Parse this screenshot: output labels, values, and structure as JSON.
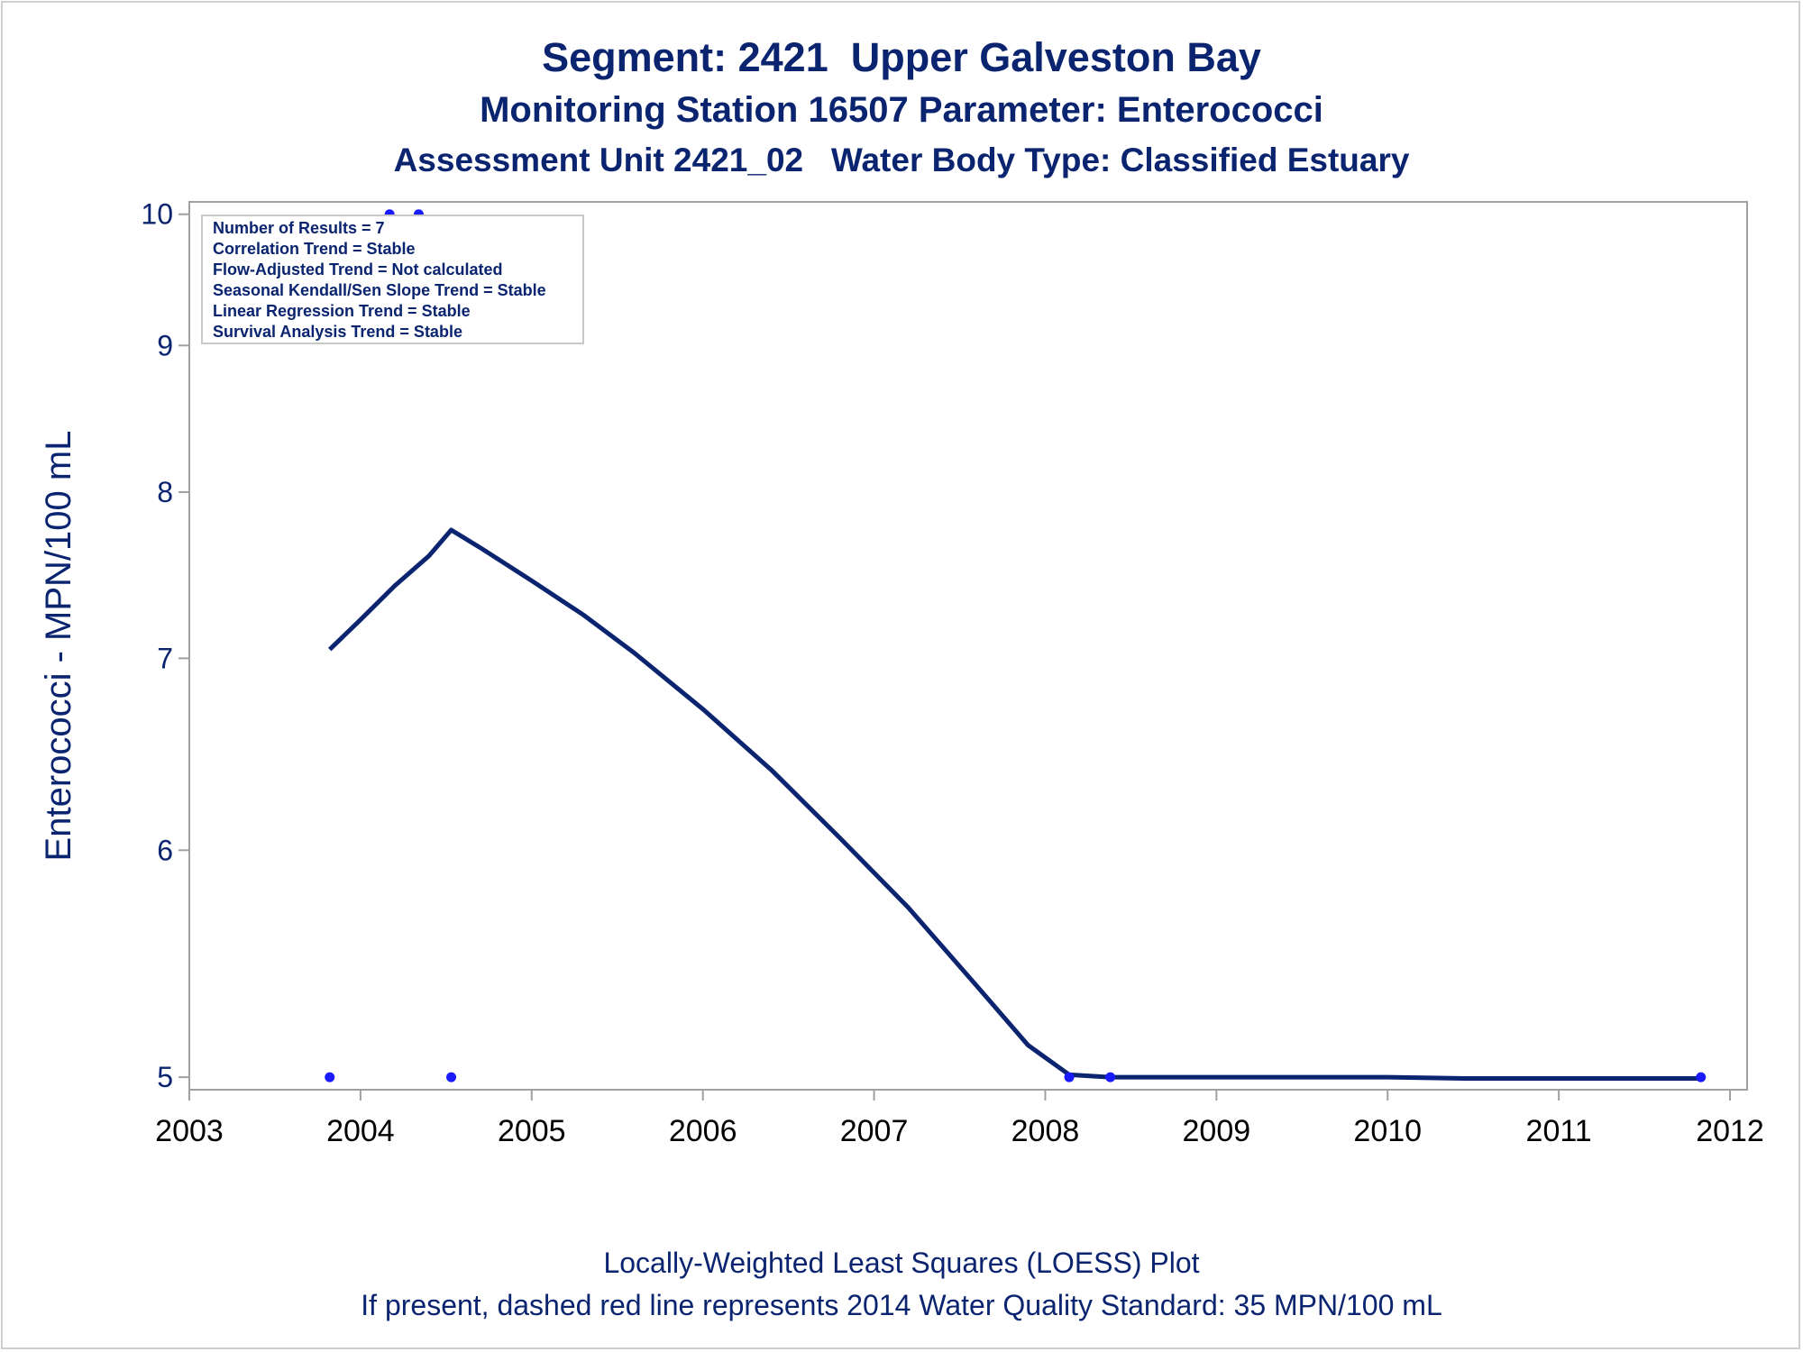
{
  "titles": {
    "line1": "Segment: 2421  Upper Galveston Bay",
    "line2": "Monitoring Station 16507 Parameter: Enterococci",
    "line3": "Assessment Unit 2421_02   Water Body Type: Classified Estuary"
  },
  "footnotes": {
    "line1": "Locally-Weighted Least Squares (LOESS) Plot",
    "line2": "If present, dashed red line represents 2014 Water Quality Standard: 35 MPN/100 mL"
  },
  "colors": {
    "text": "#0a2470",
    "loess_line": "#0a2470",
    "points": "#1a1aff",
    "frame": "#a0a0a0",
    "legend_border": "#c8c8c8"
  },
  "chart_data": {
    "type": "line",
    "ylabel": "Enterococci - MPN/100 mL",
    "xlabel": "",
    "x_axis_type": "date",
    "y_scale": "log",
    "xlim": [
      2003.0,
      2012.1
    ],
    "ylim": [
      4.95,
      10.1
    ],
    "x_ticks": [
      2003,
      2004,
      2005,
      2006,
      2007,
      2008,
      2009,
      2010,
      2011,
      2012
    ],
    "y_ticks": [
      5,
      6,
      7,
      8,
      9,
      10
    ],
    "grid": false,
    "legend_placement": "top-left",
    "stats_box": [
      "Number of Results = 7",
      "Correlation Trend = Stable",
      "Flow-Adjusted Trend = Not calculated",
      "Seasonal Kendall/Sen Slope Trend = Stable",
      "Linear Regression Trend = Stable",
      "Survival Analysis Trend = Stable"
    ],
    "series": [
      {
        "type": "scatter",
        "x": [
          2003.82,
          2004.17,
          2004.34,
          2004.53,
          2008.14,
          2008.38,
          2011.83
        ],
        "y": [
          5,
          10,
          10,
          5,
          5,
          5,
          5
        ]
      },
      {
        "type": "line",
        "x": [
          2003.82,
          2004.0,
          2004.2,
          2004.4,
          2004.53,
          2004.7,
          2005.0,
          2005.3,
          2005.6,
          2006.0,
          2006.4,
          2006.8,
          2007.2,
          2007.6,
          2007.9,
          2008.14,
          2008.38,
          2009.0,
          2010.0,
          2010.45,
          2011.0,
          2011.83
        ],
        "y": [
          7.05,
          7.22,
          7.42,
          7.6,
          7.76,
          7.65,
          7.45,
          7.25,
          7.03,
          6.72,
          6.4,
          6.06,
          5.73,
          5.38,
          5.13,
          5.01,
          5.0,
          5.0,
          5.0,
          4.995,
          4.995,
          4.995
        ]
      }
    ]
  }
}
